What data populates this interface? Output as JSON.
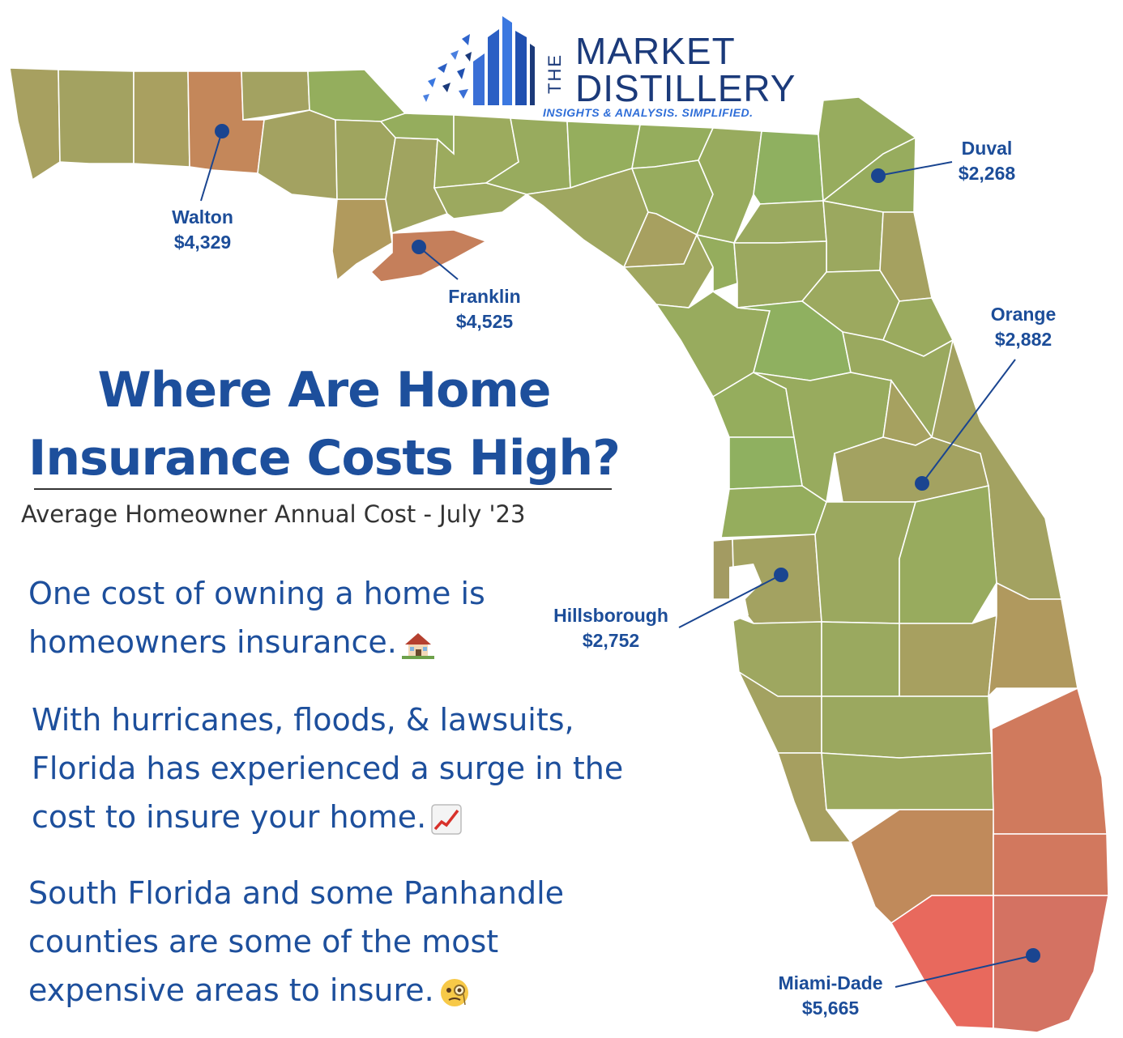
{
  "brand": {
    "the": "THE",
    "line1": "MARKET",
    "line2": "DISTILLERY",
    "tagline": "INSIGHTS & ANALYSIS. SIMPLIFIED."
  },
  "title": {
    "line1": "Where Are Home",
    "line2": "Insurance Costs High?"
  },
  "subtitle": "Average Homeowner Annual Cost - July '23",
  "paragraphs": [
    {
      "lines": [
        "One cost of owning a home is",
        "homeowners insurance."
      ],
      "icon": "house-icon"
    },
    {
      "lines": [
        "With hurricanes, floods, & lawsuits,",
        "Florida has experienced a surge in the",
        "cost to insure your home."
      ],
      "icon": "chart-increasing-icon"
    },
    {
      "lines": [
        "South Florida and some Panhandle",
        "counties are some of the most",
        "expensive areas to insure."
      ],
      "icon": "monocle-face-icon"
    }
  ],
  "callouts": [
    {
      "county": "Walton",
      "cost": "$4,329"
    },
    {
      "county": "Franklin",
      "cost": "$4,525"
    },
    {
      "county": "Duval",
      "cost": "$2,268"
    },
    {
      "county": "Orange",
      "cost": "$2,882"
    },
    {
      "county": "Hillsborough",
      "cost": "$2,752"
    },
    {
      "county": "Miami-Dade",
      "cost": "$5,665"
    }
  ],
  "colors": {
    "title_blue": "#1d4f9c",
    "callout_blue": "#1c4d99",
    "low_cost_green": "#8fb060",
    "mid_cost_olive": "#a3a261",
    "high_cost_orange": "#c7865a",
    "highest_cost_red": "#e8695d"
  }
}
